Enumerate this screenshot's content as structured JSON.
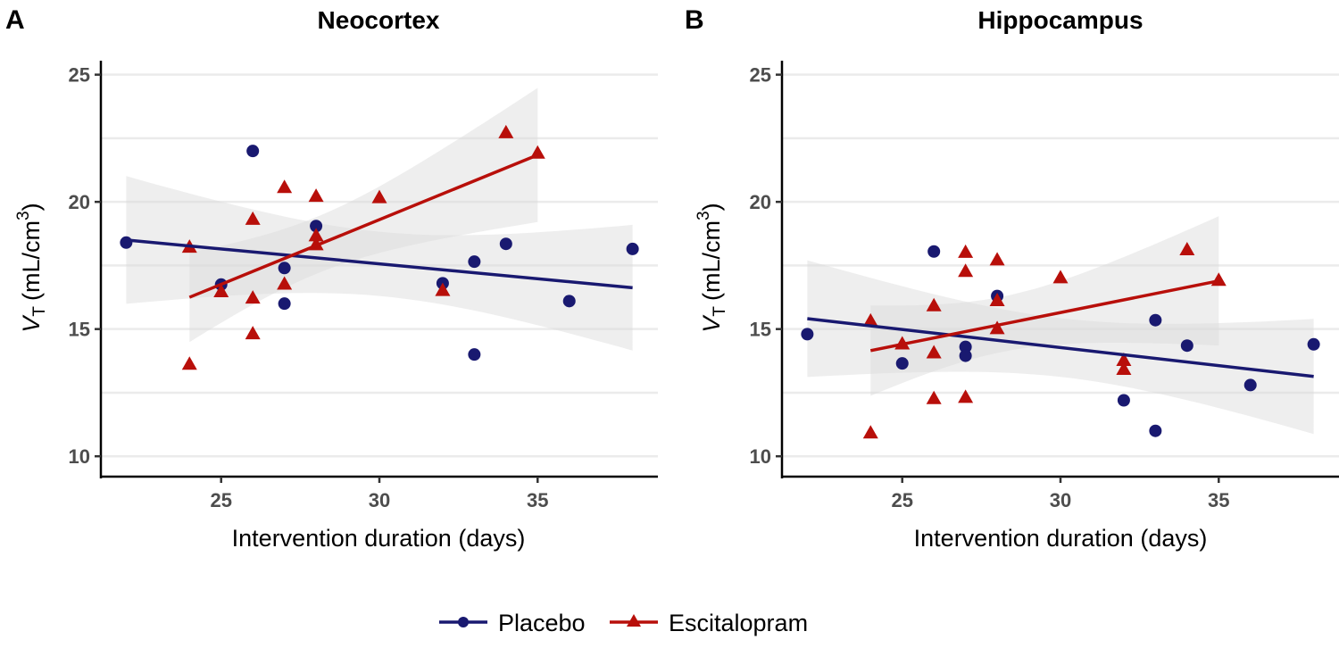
{
  "colors": {
    "placebo": "#191970",
    "escitalopram": "#B80F0A",
    "band": "#d9d9d9",
    "grid": "#ebebeb"
  },
  "legend": {
    "position": "bottom",
    "items": [
      {
        "label": "Placebo",
        "marker": "circle",
        "color_key": "placebo"
      },
      {
        "label": "Escitalopram",
        "marker": "triangle",
        "color_key": "escitalopram"
      }
    ]
  },
  "chart_data": [
    {
      "panel_letter": "A",
      "type": "scatter",
      "title": "Neocortex",
      "xlabel": "Intervention duration (days)",
      "ylabel_main": "V",
      "ylabel_sub": "T",
      "ylabel_unit": "(mL/cm",
      "ylabel_sup": "3",
      "ylabel_close": ")",
      "xlim": [
        21.2,
        38.8
      ],
      "ylim": [
        9.2,
        25.9
      ],
      "xticks": [
        25,
        30,
        35
      ],
      "yticks": [
        10,
        15,
        20,
        25
      ],
      "grid_y": [
        10,
        12.5,
        15,
        17.5,
        20,
        22.5,
        25
      ],
      "smooth": "lm with 95% CI",
      "series": [
        {
          "name": "Placebo",
          "marker": "circle",
          "points": [
            [
              22,
              18.4
            ],
            [
              25,
              16.75
            ],
            [
              26,
              22.0
            ],
            [
              27,
              17.4
            ],
            [
              27,
              16.0
            ],
            [
              28,
              19.05
            ],
            [
              32,
              16.8
            ],
            [
              33,
              17.65
            ],
            [
              33,
              14.0
            ],
            [
              34,
              18.35
            ],
            [
              36,
              16.1
            ],
            [
              38,
              18.15
            ]
          ]
        },
        {
          "name": "Escitalopram",
          "marker": "triangle",
          "points": [
            [
              24,
              18.2
            ],
            [
              24,
              13.6
            ],
            [
              25,
              16.45
            ],
            [
              26,
              19.3
            ],
            [
              26,
              16.2
            ],
            [
              26,
              14.8
            ],
            [
              27,
              20.55
            ],
            [
              27,
              16.75
            ],
            [
              28,
              20.2
            ],
            [
              28,
              18.65
            ],
            [
              28,
              18.3
            ],
            [
              30,
              20.15
            ],
            [
              32,
              16.5
            ],
            [
              34,
              22.7
            ],
            [
              35,
              21.9
            ]
          ]
        }
      ]
    },
    {
      "panel_letter": "B",
      "type": "scatter",
      "title": "Hippocampus",
      "xlabel": "Intervention duration (days)",
      "ylabel_main": "V",
      "ylabel_sub": "T",
      "ylabel_unit": "(mL/cm",
      "ylabel_sup": "3",
      "ylabel_close": ")",
      "xlim": [
        21.2,
        38.8
      ],
      "ylim": [
        9.2,
        25.9
      ],
      "xticks": [
        25,
        30,
        35
      ],
      "yticks": [
        10,
        15,
        20,
        25
      ],
      "grid_y": [
        10,
        12.5,
        15,
        17.5,
        20,
        22.5,
        25
      ],
      "smooth": "lm with 95% CI",
      "series": [
        {
          "name": "Placebo",
          "marker": "circle",
          "points": [
            [
              22,
              14.8
            ],
            [
              25,
              13.65
            ],
            [
              26,
              18.05
            ],
            [
              27,
              14.3
            ],
            [
              27,
              13.95
            ],
            [
              28,
              16.3
            ],
            [
              32,
              12.2
            ],
            [
              33,
              15.35
            ],
            [
              33,
              11.0
            ],
            [
              34,
              14.35
            ],
            [
              36,
              12.8
            ],
            [
              38,
              14.4
            ]
          ]
        },
        {
          "name": "Escitalopram",
          "marker": "triangle",
          "points": [
            [
              24,
              15.3
            ],
            [
              24,
              10.9
            ],
            [
              25,
              14.4
            ],
            [
              26,
              15.9
            ],
            [
              26,
              14.05
            ],
            [
              26,
              12.25
            ],
            [
              27,
              18.0
            ],
            [
              27,
              17.25
            ],
            [
              27,
              12.3
            ],
            [
              28,
              17.7
            ],
            [
              28,
              16.1
            ],
            [
              28,
              15.0
            ],
            [
              30,
              17.0
            ],
            [
              32,
              13.75
            ],
            [
              32,
              13.4
            ],
            [
              34,
              18.1
            ],
            [
              35,
              16.9
            ]
          ]
        }
      ]
    }
  ]
}
